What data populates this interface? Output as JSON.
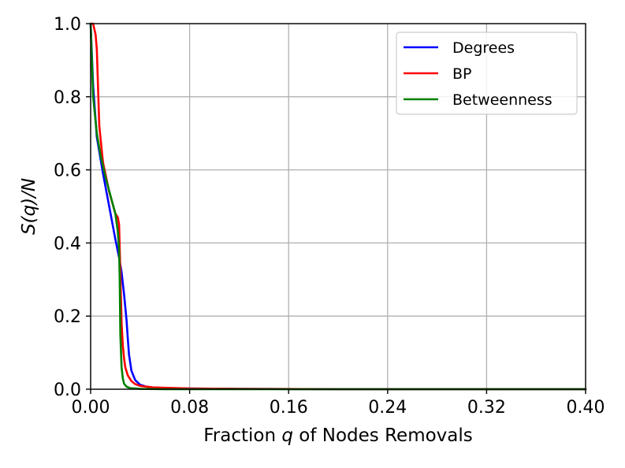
{
  "chart_data": {
    "type": "line",
    "xlabel_pre": "Fraction ",
    "xlabel_var": "q",
    "xlabel_post": " of Nodes Removals",
    "ylabel": "S(q)/N",
    "xlim": [
      0.0,
      0.4
    ],
    "ylim": [
      0.0,
      1.0
    ],
    "xticks": [
      0.0,
      0.08,
      0.16,
      0.24,
      0.32,
      0.4
    ],
    "xtick_labels": [
      "0.00",
      "0.08",
      "0.16",
      "0.24",
      "0.32",
      "0.40"
    ],
    "yticks": [
      0.0,
      0.2,
      0.4,
      0.6,
      0.8,
      1.0
    ],
    "ytick_labels": [
      "0.0",
      "0.2",
      "0.4",
      "0.6",
      "0.8",
      "1.0"
    ],
    "grid": true,
    "legend_position": "top-right",
    "series": [
      {
        "name": "Degrees",
        "color": "#0000ff",
        "x": [
          0.0,
          0.002,
          0.005,
          0.01,
          0.015,
          0.02,
          0.023,
          0.025,
          0.027,
          0.029,
          0.03,
          0.031,
          0.033,
          0.036,
          0.04,
          0.045,
          0.05,
          0.06,
          0.08,
          0.12,
          0.2,
          0.4
        ],
        "y": [
          1.0,
          0.83,
          0.69,
          0.59,
          0.5,
          0.41,
          0.36,
          0.32,
          0.26,
          0.19,
          0.14,
          0.095,
          0.05,
          0.025,
          0.012,
          0.007,
          0.005,
          0.003,
          0.002,
          0.001,
          0.0,
          0.0
        ]
      },
      {
        "name": "BP",
        "color": "#ff0000",
        "x": [
          0.0,
          0.002,
          0.004,
          0.005,
          0.007,
          0.01,
          0.015,
          0.02,
          0.022,
          0.023,
          0.024,
          0.025,
          0.026,
          0.027,
          0.028,
          0.03,
          0.033,
          0.036,
          0.04,
          0.05,
          0.06,
          0.08,
          0.12,
          0.2,
          0.4
        ],
        "y": [
          1.0,
          1.0,
          0.97,
          0.93,
          0.72,
          0.62,
          0.54,
          0.48,
          0.47,
          0.45,
          0.32,
          0.18,
          0.12,
          0.085,
          0.06,
          0.038,
          0.022,
          0.014,
          0.009,
          0.005,
          0.004,
          0.002,
          0.001,
          0.0,
          0.0
        ]
      },
      {
        "name": "Betweenness",
        "color": "#008000",
        "x": [
          0.0,
          0.002,
          0.005,
          0.008,
          0.012,
          0.016,
          0.02,
          0.022,
          0.023,
          0.0235,
          0.024,
          0.025,
          0.026,
          0.027,
          0.029,
          0.032,
          0.036,
          0.04,
          0.06,
          0.1,
          0.2,
          0.4
        ],
        "y": [
          1.0,
          0.8,
          0.7,
          0.64,
          0.58,
          0.53,
          0.48,
          0.43,
          0.38,
          0.3,
          0.15,
          0.06,
          0.03,
          0.015,
          0.007,
          0.003,
          0.002,
          0.001,
          0.0,
          0.0,
          0.0,
          0.0
        ]
      }
    ]
  }
}
